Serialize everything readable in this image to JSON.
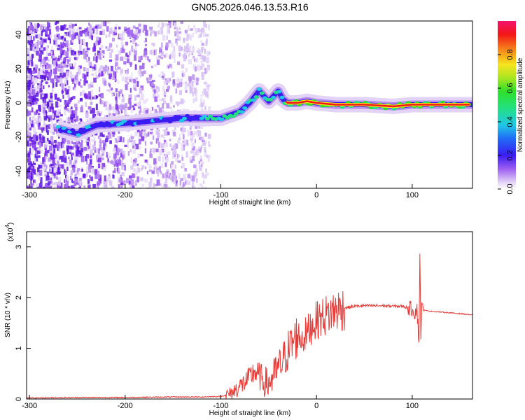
{
  "title": "GN05.2026.046.13.53.R16",
  "colors": {
    "signal": "#e83a36",
    "background_noise": "#8a45e8",
    "axis": "#000000"
  },
  "chart_data": [
    {
      "type": "heatmap",
      "name": "spectrogram",
      "xlabel": "Height of straight line (km)",
      "ylabel": "Frequency (Hz)",
      "xlim": [
        -303,
        163
      ],
      "ylim": [
        -50,
        48
      ],
      "x_ticks": [
        "-300",
        "-200",
        "-100",
        "0",
        "100"
      ],
      "x_tick_values": [
        -300,
        -200,
        -100,
        0,
        100
      ],
      "y_ticks": [
        "40",
        "20",
        "0",
        "-20",
        "-40"
      ],
      "y_tick_values": [
        40,
        20,
        0,
        -20,
        -40
      ],
      "colorbar": {
        "label": "Normalized spectral amplitude",
        "range": [
          0,
          1
        ],
        "ticks": [
          "0.0",
          "0.2",
          "0.4",
          "0.6",
          "0.8"
        ],
        "tick_values": [
          0.0,
          0.2,
          0.4,
          0.6,
          0.8
        ]
      },
      "ridge": {
        "x": [
          -270,
          -250,
          -230,
          -200,
          -180,
          -160,
          -140,
          -120,
          -100,
          -80,
          -70,
          -60,
          -55,
          -50,
          -45,
          -40,
          -35,
          -30,
          -20,
          -10,
          0,
          20,
          50,
          80,
          100,
          130,
          163
        ],
        "y": [
          -15,
          -18,
          -13,
          -12,
          -11,
          -10,
          -9,
          -9,
          -9,
          -5,
          0,
          7,
          4,
          1,
          4,
          7,
          2,
          0,
          0,
          1,
          0,
          -1,
          -1,
          -2,
          -1,
          -1,
          -1
        ]
      }
    },
    {
      "type": "line",
      "name": "snr",
      "xlabel": "Height of straight line (km)",
      "ylabel": "SNR (10 * v/v)",
      "y_multiplier": "(x10",
      "y_multiplier_exp": "4",
      "y_multiplier_close": ")",
      "xlim": [
        -303,
        163
      ],
      "ylim": [
        0,
        3.3
      ],
      "x_ticks": [
        "-300",
        "-200",
        "-100",
        "0",
        "100"
      ],
      "x_tick_values": [
        -300,
        -200,
        -100,
        0,
        100
      ],
      "y_ticks": [
        "3",
        "2",
        "1",
        "0"
      ],
      "y_tick_values": [
        3,
        2,
        1,
        0
      ],
      "series": [
        {
          "name": "SNR",
          "x": [
            -303,
            -250,
            -200,
            -150,
            -120,
            -100,
            -90,
            -80,
            -70,
            -65,
            -60,
            -55,
            -50,
            -45,
            -40,
            -35,
            -30,
            -25,
            -20,
            -15,
            -10,
            -5,
            0,
            10,
            20,
            30,
            40,
            50,
            60,
            70,
            80,
            90,
            95,
            100,
            103,
            105,
            107,
            108,
            109,
            110,
            112,
            120,
            140,
            163
          ],
          "y": [
            0.02,
            0.03,
            0.03,
            0.04,
            0.04,
            0.05,
            0.1,
            0.25,
            0.4,
            0.55,
            0.45,
            0.35,
            0.3,
            0.45,
            0.6,
            0.75,
            0.95,
            1.1,
            1.25,
            1.2,
            1.3,
            1.45,
            1.55,
            1.65,
            1.75,
            1.8,
            1.83,
            1.84,
            1.84,
            1.84,
            1.83,
            1.83,
            1.8,
            1.78,
            1.7,
            1.8,
            1.1,
            2.9,
            1.3,
            1.78,
            1.75,
            1.73,
            1.7,
            1.66
          ]
        }
      ]
    }
  ]
}
